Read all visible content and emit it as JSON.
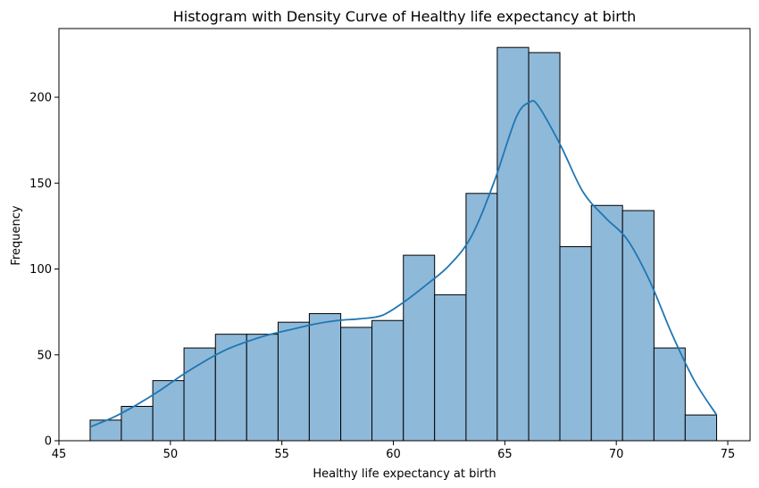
{
  "chart_data": {
    "type": "histogram",
    "title": "Histogram with Density Curve of Healthy life expectancy at birth",
    "xlabel": "Healthy life expectancy at birth",
    "ylabel": "Frequency",
    "xlim": [
      45,
      76
    ],
    "ylim": [
      0,
      240
    ],
    "xticks": [
      45,
      50,
      55,
      60,
      65,
      70,
      75
    ],
    "yticks": [
      0,
      50,
      100,
      150,
      200
    ],
    "bin_edges": [
      46.4,
      47.8,
      49.21,
      50.61,
      52.02,
      53.42,
      54.83,
      56.23,
      57.64,
      59.04,
      60.45,
      61.85,
      63.26,
      64.66,
      66.07,
      67.47,
      68.88,
      70.28,
      71.69,
      73.09,
      74.5
    ],
    "counts": [
      12,
      20,
      35,
      54,
      62,
      62,
      69,
      74,
      66,
      70,
      108,
      85,
      144,
      229,
      226,
      113,
      137,
      134,
      54,
      15
    ],
    "density_curve": {
      "x": [
        46.4,
        47.5,
        48.5,
        49.5,
        50.5,
        51.5,
        52.5,
        53.5,
        54.5,
        55.5,
        56.5,
        57.5,
        58.5,
        59.5,
        60.5,
        61.5,
        62.5,
        63.5,
        64.5,
        65.5,
        66.1,
        66.5,
        67.5,
        68.5,
        69.5,
        70.5,
        71.5,
        72.5,
        73.5,
        74.5
      ],
      "y": [
        8,
        14,
        21,
        29,
        38,
        46,
        53,
        58,
        62,
        65,
        68,
        70,
        71,
        73,
        81,
        91,
        102,
        119,
        150,
        188,
        197,
        195,
        172,
        145,
        130,
        117,
        93,
        62,
        35,
        15
      ]
    },
    "bar_color": "#8fb9d9",
    "bar_edge_color": "#000000",
    "line_color": "#1f77b4",
    "grid": false,
    "legend": false
  }
}
